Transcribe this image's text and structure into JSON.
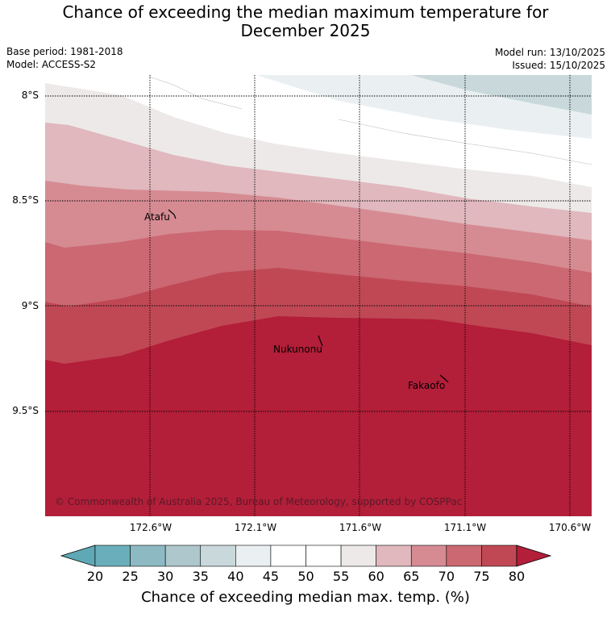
{
  "header": {
    "title_line1": "Chance of exceeding the median maximum temperature for",
    "title_line2": "December 2025",
    "base_period": "Base period: 1981-2018",
    "model": "Model: ACCESS-S2",
    "model_run": "Model run: 13/10/2025",
    "issued": "Issued: 15/10/2025"
  },
  "map": {
    "lat_labels": [
      "8°S",
      "8.5°S",
      "9°S",
      "9.5°S"
    ],
    "lon_labels": [
      "172.6°W",
      "172.1°W",
      "171.6°W",
      "171.1°W",
      "170.6°W"
    ],
    "places": [
      "Atafu",
      "Nukunonu",
      "Fakaofo"
    ],
    "copyright": "© Commonwealth of Australia 2025, Bureau of Meteorology, supported by COSPPac"
  },
  "colorbar": {
    "ticks": [
      "20",
      "25",
      "30",
      "35",
      "40",
      "45",
      "50",
      "55",
      "60",
      "65",
      "70",
      "75",
      "80"
    ],
    "colors": [
      "#5fa8b6",
      "#6aaebb",
      "#8db9c2",
      "#aec7cc",
      "#c9d8db",
      "#eaf0f2",
      "#ffffff",
      "#ffffff",
      "#ede9e8",
      "#e0b8bd",
      "#d68b93",
      "#cb6871",
      "#c04855",
      "#b31e39"
    ],
    "title": "Chance of exceeding median max. temp. (%)"
  }
}
